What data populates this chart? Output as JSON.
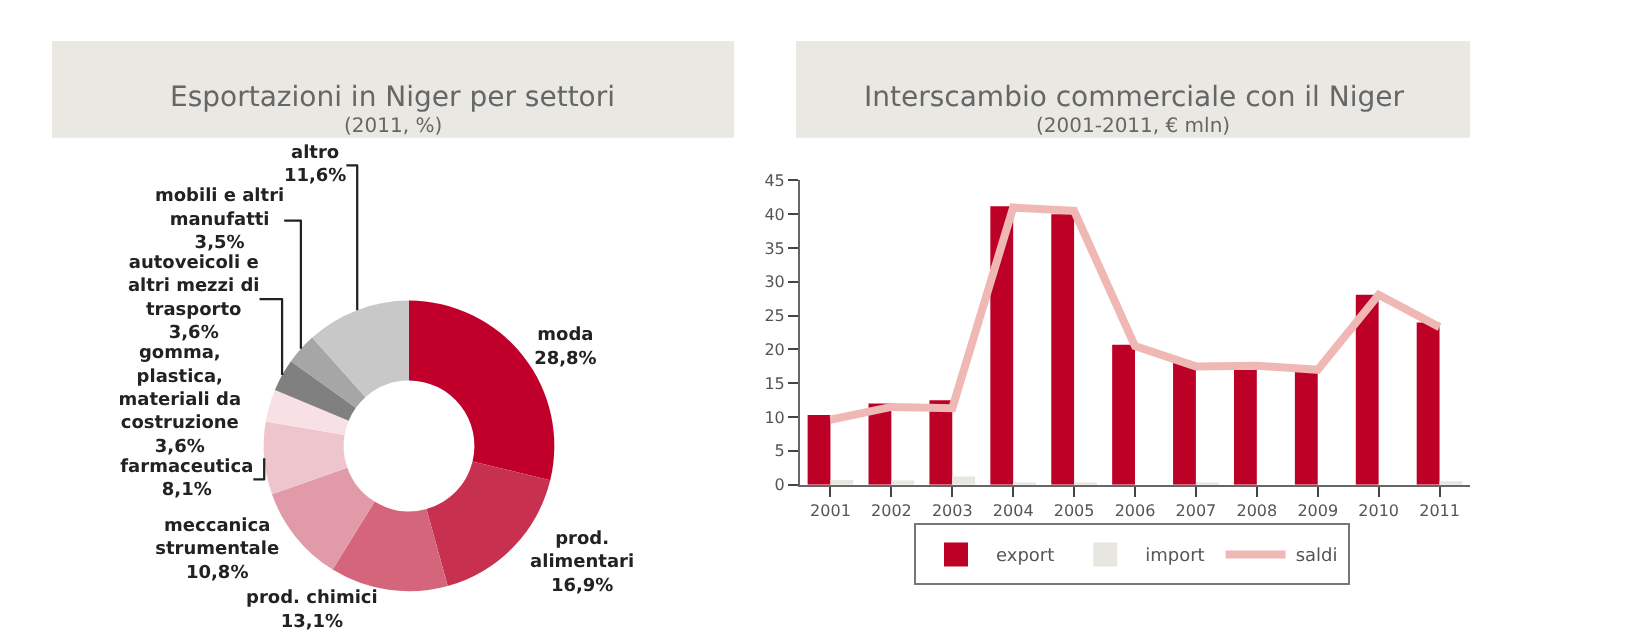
{
  "chart_data": [
    {
      "type": "donut",
      "title": "Esportazioni in Niger per settori",
      "subtitle": "(2011, %)",
      "categories": [
        "moda",
        "prod.\nalimentari",
        "prod. chimici",
        "meccanica\nstrumentale",
        "farmaceutica",
        "gomma,\nplastica,\nmateriali da\ncostruzione",
        "autoveicoli e\naltri mezzi di\ntrasporto",
        "mobili e altri\nmanufatti",
        "altro"
      ],
      "values": [
        28.8,
        16.9,
        13.1,
        10.8,
        8.1,
        3.6,
        3.6,
        3.5,
        11.6
      ],
      "value_labels": [
        "28,8%",
        "16,9%",
        "13,1%",
        "10,8%",
        "8,1%",
        "3,6%",
        "3,6%",
        "3,5%",
        "11,6%"
      ],
      "colors": [
        "#c0002a",
        "#c8304f",
        "#d5657a",
        "#e19aa8",
        "#efc5cd",
        "#f7e1e5",
        "#808080",
        "#a6a6a6",
        "#c8c8c8"
      ],
      "legend": false
    },
    {
      "type": "bar",
      "title": "Interscambio commerciale con il Niger",
      "subtitle": "(2001-2011, € mln)",
      "categories": [
        "2001",
        "2002",
        "2003",
        "2004",
        "2005",
        "2006",
        "2007",
        "2008",
        "2009",
        "2010",
        "2011"
      ],
      "series": [
        {
          "name": "export",
          "color": "#bd0026",
          "values": [
            10.3,
            12.0,
            12.5,
            41.2,
            40.0,
            20.7,
            18.1,
            17.5,
            17.0,
            28.1,
            24.0
          ]
        },
        {
          "name": "import",
          "color": "#e8e6e0",
          "values": [
            0.7,
            0.6,
            1.2,
            0.2,
            0.2,
            null,
            0.3,
            null,
            null,
            null,
            0.5
          ]
        },
        {
          "name": "saldi",
          "type": "line",
          "color": "#f0b8b5",
          "marker": "none",
          "values": [
            9.6,
            11.5,
            11.3,
            41.0,
            40.5,
            20.5,
            17.5,
            17.6,
            17.0,
            28.1,
            23.3
          ]
        }
      ],
      "ylim": [
        0,
        45
      ],
      "yticks": [
        0,
        5,
        10,
        15,
        20,
        25,
        30,
        35,
        40,
        45
      ],
      "grid": false,
      "legend": "bottom"
    }
  ]
}
